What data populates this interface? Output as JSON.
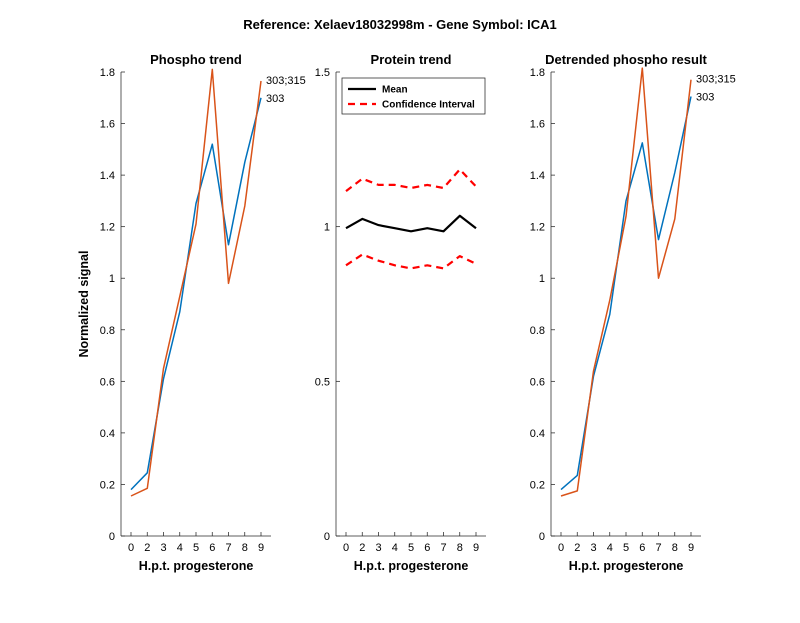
{
  "figure_title": "Reference:  Xelaev18032998m - Gene Symbol:  ICA1",
  "chart_data": [
    {
      "type": "line",
      "title": "Phospho trend",
      "xlabel": "H.p.t. progesterone",
      "ylabel": "Normalized signal",
      "categories": [
        "0",
        "2",
        "3",
        "4",
        "5",
        "6",
        "7",
        "8",
        "9"
      ],
      "ylim": [
        0,
        1.8
      ],
      "yticks": [
        0,
        0.2,
        0.4,
        0.6,
        0.8,
        1,
        1.2,
        1.4,
        1.6,
        1.8
      ],
      "ytick_labels": [
        "0",
        "0.2",
        "0.4",
        "0.6",
        "0.8",
        "1",
        "1.2",
        "1.4",
        "1.6",
        "1.8"
      ],
      "series": [
        {
          "name": "303",
          "color": "#0072BD",
          "values": [
            0.18,
            0.245,
            0.61,
            0.87,
            1.29,
            1.52,
            1.13,
            1.45,
            1.7
          ]
        },
        {
          "name": "303;315",
          "color": "#D95319",
          "values": [
            0.155,
            0.185,
            0.65,
            0.93,
            1.21,
            1.81,
            0.98,
            1.28,
            1.765
          ]
        }
      ]
    },
    {
      "type": "line",
      "title": "Protein trend",
      "xlabel": "H.p.t. progesterone",
      "ylabel": "",
      "categories": [
        "0",
        "2",
        "3",
        "4",
        "5",
        "6",
        "7",
        "8",
        "9"
      ],
      "ylim": [
        0,
        1.5
      ],
      "yticks": [
        0,
        0.5,
        1,
        1.5
      ],
      "ytick_labels": [
        "0",
        "0.5",
        "1",
        "1.5"
      ],
      "legend": {
        "position": "top-left",
        "entries": [
          "Mean",
          "Confidence Interval"
        ]
      },
      "series": [
        {
          "name": "Mean",
          "color": "#000000",
          "style": "solid",
          "values": [
            0.995,
            1.025,
            1.005,
            0.995,
            0.985,
            0.995,
            0.985,
            1.035,
            0.995
          ]
        },
        {
          "name": "Confidence Interval",
          "color": "#FF0000",
          "style": "dashed",
          "values": [
            1.115,
            1.155,
            1.135,
            1.135,
            1.125,
            1.135,
            1.125,
            1.185,
            1.13
          ]
        },
        {
          "name": "Confidence Interval (lower)",
          "color": "#FF0000",
          "style": "dashed",
          "values": [
            0.875,
            0.91,
            0.89,
            0.875,
            0.865,
            0.875,
            0.865,
            0.905,
            0.88
          ]
        }
      ]
    },
    {
      "type": "line",
      "title": "Detrended phospho result",
      "xlabel": "H.p.t. progesterone",
      "ylabel": "",
      "categories": [
        "0",
        "2",
        "3",
        "4",
        "5",
        "6",
        "7",
        "8",
        "9"
      ],
      "ylim": [
        0,
        1.8
      ],
      "yticks": [
        0,
        0.2,
        0.4,
        0.6,
        0.8,
        1,
        1.2,
        1.4,
        1.6,
        1.8
      ],
      "ytick_labels": [
        "0",
        "0.2",
        "0.4",
        "0.6",
        "0.8",
        "1",
        "1.2",
        "1.4",
        "1.6",
        "1.8"
      ],
      "series": [
        {
          "name": "303",
          "color": "#0072BD",
          "values": [
            0.18,
            0.235,
            0.62,
            0.86,
            1.3,
            1.525,
            1.15,
            1.41,
            1.705
          ]
        },
        {
          "name": "303;315",
          "color": "#D95319",
          "values": [
            0.155,
            0.175,
            0.64,
            0.915,
            1.24,
            1.815,
            1.0,
            1.23,
            1.77
          ]
        }
      ]
    }
  ]
}
